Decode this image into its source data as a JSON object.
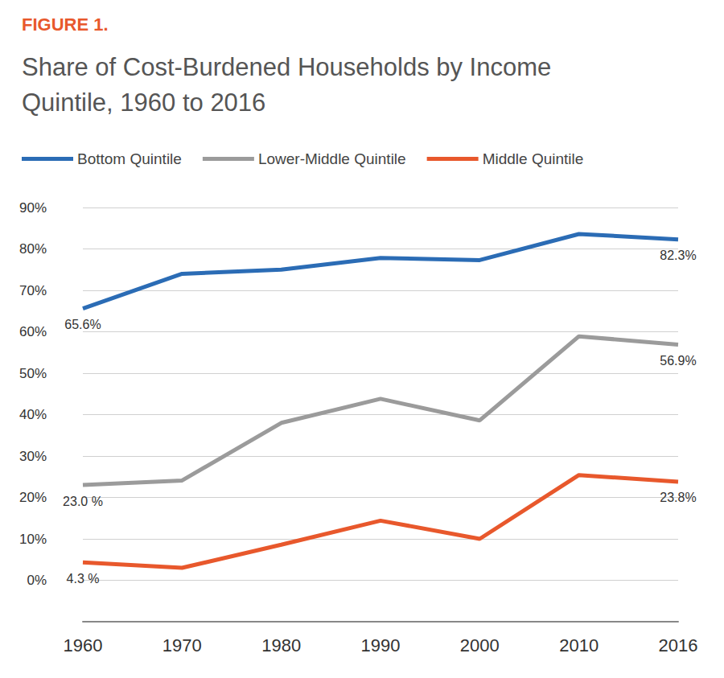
{
  "chart_data": {
    "type": "line",
    "subtitle": "FIGURE 1.",
    "title": "Share of Cost-Burdened Households by Income Quintile, 1960 to 2016",
    "categories": [
      "1960",
      "1970",
      "1980",
      "1990",
      "2000",
      "2010",
      "2016"
    ],
    "series": [
      {
        "name": "Bottom Quintile",
        "color": "#2b6cb5",
        "values": [
          65.6,
          74.0,
          75.0,
          77.8,
          77.3,
          83.6,
          82.3
        ],
        "value_labels": [
          "65.6%",
          null,
          null,
          null,
          null,
          null,
          "82.3%"
        ]
      },
      {
        "name": "Lower-Middle Quintile",
        "color": "#9b9b9b",
        "values": [
          23.0,
          24.1,
          38.0,
          43.8,
          38.6,
          58.9,
          56.9
        ],
        "value_labels": [
          "23.0 %",
          null,
          null,
          null,
          null,
          null,
          "56.9%"
        ]
      },
      {
        "name": "Middle Quintile",
        "color": "#e8582c",
        "values": [
          4.3,
          3.0,
          8.6,
          14.4,
          10.0,
          25.4,
          23.8
        ],
        "value_labels": [
          "4.3 %",
          null,
          null,
          null,
          null,
          null,
          "23.8%"
        ]
      }
    ],
    "ylim": [
      -10,
      90
    ],
    "yticks": [
      {
        "value": 0,
        "label": "0%"
      },
      {
        "value": 10,
        "label": "10%"
      },
      {
        "value": 20,
        "label": "20%"
      },
      {
        "value": 30,
        "label": "30%"
      },
      {
        "value": 40,
        "label": "40%"
      },
      {
        "value": 50,
        "label": "50%"
      },
      {
        "value": 60,
        "label": "60%"
      },
      {
        "value": 70,
        "label": "70%"
      },
      {
        "value": 80,
        "label": "80%"
      },
      {
        "value": 90,
        "label": "90%"
      }
    ],
    "grid": true,
    "legend": "top",
    "data_labels": true
  }
}
